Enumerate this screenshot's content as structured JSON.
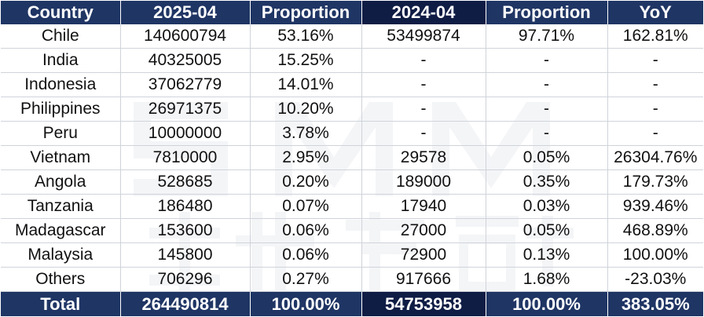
{
  "table": {
    "headers": [
      "Country",
      "2025-04",
      "Proportion",
      "2024-04",
      "Proportion",
      "YoY"
    ],
    "rows": [
      [
        "Chile",
        "140600794",
        "53.16%",
        "53499874",
        "97.71%",
        "162.81%"
      ],
      [
        "India",
        "40325005",
        "15.25%",
        "-",
        "-",
        "-"
      ],
      [
        "Indonesia",
        "37062779",
        "14.01%",
        "-",
        "-",
        "-"
      ],
      [
        "Philippines",
        "26971375",
        "10.20%",
        "-",
        "-",
        "-"
      ],
      [
        "Peru",
        "10000000",
        "3.78%",
        "-",
        "-",
        "-"
      ],
      [
        "Vietnam",
        "7810000",
        "2.95%",
        "29578",
        "0.05%",
        "26304.76%"
      ],
      [
        "Angola",
        "528685",
        "0.20%",
        "189000",
        "0.35%",
        "179.73%"
      ],
      [
        "Tanzania",
        "186480",
        "0.07%",
        "17940",
        "0.03%",
        "939.46%"
      ],
      [
        "Madagascar",
        "153600",
        "0.06%",
        "27000",
        "0.05%",
        "468.89%"
      ],
      [
        "Malaysia",
        "145800",
        "0.06%",
        "72900",
        "0.13%",
        "100.00%"
      ],
      [
        "Others",
        "706296",
        "0.27%",
        "917666",
        "1.68%",
        "-23.03%"
      ]
    ],
    "total": [
      "Total",
      "264490814",
      "100.00%",
      "54753958",
      "100.00%",
      "383.05%"
    ]
  },
  "colors": {
    "header_bg": "#1f3564",
    "header_bg_dark": "#0f1d45",
    "header_text": "#ffffff",
    "grid_line": "#cfd3da"
  },
  "watermark": {
    "type": "logo-watermark",
    "text": "SMM 上海有色网"
  }
}
